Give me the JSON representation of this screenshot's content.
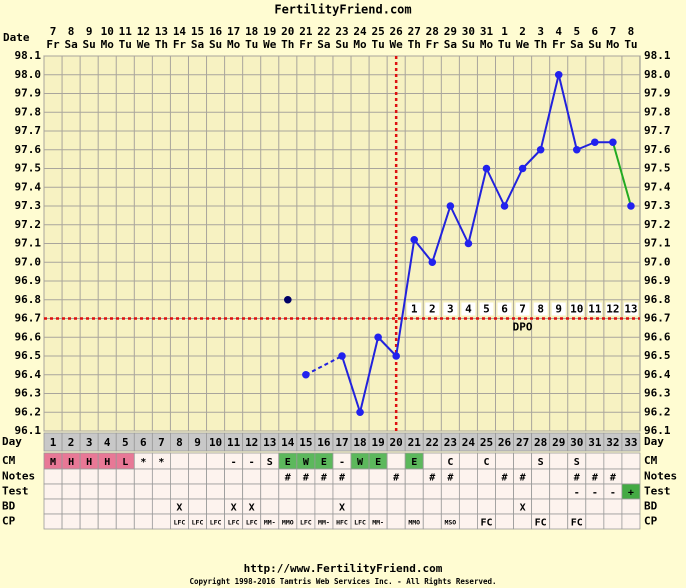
{
  "header": {
    "title": "FertilityFriend.com"
  },
  "chart": {
    "date_label": "Date",
    "dates": [
      7,
      8,
      9,
      10,
      11,
      12,
      13,
      14,
      15,
      16,
      17,
      18,
      19,
      20,
      21,
      22,
      23,
      24,
      25,
      26,
      27,
      28,
      29,
      30,
      31,
      1,
      2,
      3,
      4,
      5,
      6,
      7,
      8
    ],
    "weekdays": [
      "Fr",
      "Sa",
      "Su",
      "Mo",
      "Tu",
      "We",
      "Th",
      "Fr",
      "Sa",
      "Su",
      "Mo",
      "Tu",
      "We",
      "Th",
      "Fr",
      "Sa",
      "Su",
      "Mo",
      "Tu",
      "We",
      "Th",
      "Fr",
      "Sa",
      "Su",
      "Mo",
      "Tu",
      "We",
      "Th",
      "Fr",
      "Sa",
      "Su",
      "Mo",
      "Tu"
    ],
    "ylim": [
      96.1,
      98.1
    ],
    "yticks": [
      96.1,
      96.2,
      96.3,
      96.4,
      96.5,
      96.6,
      96.7,
      96.8,
      96.9,
      {
        "value": 97,
        "label": "97.0"
      },
      97.1,
      97.2,
      97.3,
      97.4,
      97.5,
      97.6,
      97.7,
      97.8,
      97.9,
      {
        "value": 98,
        "label": "98.0"
      },
      98.1
    ],
    "temperatures": [
      null,
      null,
      null,
      null,
      null,
      null,
      null,
      null,
      null,
      null,
      null,
      null,
      null,
      null,
      96.4,
      null,
      96.5,
      96.2,
      96.6,
      96.5,
      97.12,
      97.0,
      97.3,
      97.1,
      97.5,
      97.3,
      97.5,
      97.6,
      98.0,
      97.6,
      97.64,
      97.64,
      97.3
    ],
    "excluded_temperatures": [
      null,
      null,
      null,
      null,
      null,
      null,
      null,
      null,
      null,
      null,
      null,
      null,
      null,
      96.8,
      null,
      null,
      null,
      null,
      null,
      null,
      null,
      null,
      null,
      null,
      null,
      null,
      null,
      null,
      null,
      null,
      null,
      null,
      null
    ],
    "coverline": 96.7,
    "ovulation_day": 20,
    "dpo": [
      null,
      null,
      null,
      null,
      null,
      null,
      null,
      null,
      null,
      null,
      null,
      null,
      null,
      null,
      null,
      null,
      null,
      null,
      null,
      null,
      1,
      2,
      3,
      4,
      5,
      6,
      7,
      8,
      9,
      10,
      11,
      12,
      13
    ],
    "dpo_label": "DPO",
    "line_color": "#2222dd",
    "last_segment_color": "#22aa22",
    "point_color": "#2222ee",
    "excluded_point_color": "#000066",
    "coverline_color": "#dd1111"
  },
  "rows": [
    {
      "label": "Day",
      "cells": [
        1,
        2,
        3,
        4,
        5,
        6,
        7,
        8,
        9,
        10,
        11,
        12,
        13,
        14,
        15,
        16,
        17,
        18,
        19,
        20,
        21,
        22,
        23,
        24,
        25,
        26,
        27,
        28,
        29,
        30,
        31,
        32,
        33
      ]
    },
    {
      "label": "CM",
      "cells": [
        "M",
        "H",
        "H",
        "H",
        "L",
        "*",
        "*",
        null,
        null,
        null,
        "-",
        "-",
        "S",
        "E",
        "W",
        "E",
        "-",
        "W",
        "E",
        null,
        "E",
        null,
        "C",
        null,
        "C",
        null,
        null,
        "S",
        null,
        "S",
        null,
        null,
        null
      ],
      "colors": {
        "M": "#e87896",
        "H": "#e87896",
        "L": "#e87896",
        "E": "#5cb85c",
        "W": "#5cb85c"
      }
    },
    {
      "label": "Notes",
      "cells": [
        null,
        null,
        null,
        null,
        null,
        null,
        null,
        null,
        null,
        null,
        null,
        null,
        null,
        "#",
        "#",
        "#",
        "#",
        null,
        null,
        "#",
        null,
        "#",
        "#",
        null,
        null,
        "#",
        "#",
        null,
        null,
        "#",
        "#",
        "#",
        null
      ]
    },
    {
      "label": "Test",
      "cells": [
        null,
        null,
        null,
        null,
        null,
        null,
        null,
        null,
        null,
        null,
        null,
        null,
        null,
        null,
        null,
        null,
        null,
        null,
        null,
        null,
        null,
        null,
        null,
        null,
        null,
        null,
        null,
        null,
        null,
        "-",
        "-",
        "-",
        "+"
      ],
      "colors": {
        "+": "#44aa44"
      }
    },
    {
      "label": "BD",
      "cells": [
        null,
        null,
        null,
        null,
        null,
        null,
        null,
        "X",
        null,
        null,
        "X",
        "X",
        null,
        null,
        null,
        null,
        "X",
        null,
        null,
        null,
        null,
        null,
        null,
        null,
        null,
        null,
        "X",
        null,
        null,
        null,
        null,
        null,
        null
      ]
    },
    {
      "label": "CP",
      "cells": [
        null,
        null,
        null,
        null,
        null,
        null,
        null,
        "LFC",
        "LFC",
        "LFC",
        "LFC",
        "LFC",
        "MM-",
        "MMO",
        "LFC",
        "MM-",
        "HFC",
        "LFC",
        "MM-",
        null,
        "MMO",
        null,
        "MSO",
        null,
        "FC",
        null,
        null,
        "FC",
        null,
        "FC",
        null,
        null,
        null
      ]
    }
  ],
  "footer": {
    "url": "http://www.FertilityFriend.com",
    "copyright": "Copyright 1998-2016 Tamtris Web Services Inc. - All Rights Reserved."
  }
}
